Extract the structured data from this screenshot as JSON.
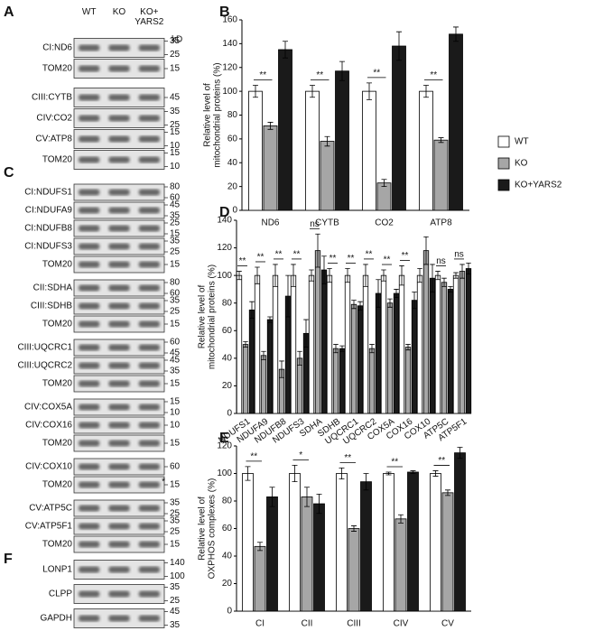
{
  "blots": [
    {
      "label": "A",
      "lanes": [
        "WT",
        "KO",
        "KO+ YARS2"
      ],
      "unit": "kD",
      "groups": [
        [
          {
            "name": "CI:ND6",
            "markers": [
              "35",
              "25"
            ]
          },
          {
            "name": "TOM20",
            "markers": [
              "15"
            ]
          }
        ],
        [
          {
            "name": "CIII:CYTB",
            "markers": [
              "45"
            ]
          },
          {
            "name": "CIV:CO2",
            "markers": [
              "35",
              "25"
            ]
          },
          {
            "name": "CV:ATP8",
            "markers": [
              "15",
              "10"
            ]
          },
          {
            "name": "TOM20",
            "markers": [
              "15",
              "10"
            ]
          }
        ]
      ]
    },
    {
      "label": "C",
      "groups": [
        [
          {
            "name": "CI:NDUFS1",
            "markers": [
              "80",
              "60"
            ]
          },
          {
            "name": "CI:NDUFA9",
            "markers": [
              "45",
              "35"
            ]
          },
          {
            "name": "CI:NDUFB8",
            "markers": [
              "25",
              "15"
            ]
          },
          {
            "name": "CI:NDUFS3",
            "markers": [
              "35",
              "25"
            ]
          },
          {
            "name": "TOM20",
            "markers": [
              "15"
            ]
          }
        ],
        [
          {
            "name": "CII:SDHA",
            "markers": [
              "80",
              "60"
            ]
          },
          {
            "name": "CIII:SDHB",
            "markers": [
              "35",
              "25"
            ]
          },
          {
            "name": "TOM20",
            "markers": [
              "15"
            ]
          }
        ],
        [
          {
            "name": "CIII:UQCRC1",
            "markers": [
              "60",
              "45"
            ]
          },
          {
            "name": "CIII:UQCRC2",
            "markers": [
              "45",
              "35"
            ]
          },
          {
            "name": "TOM20",
            "markers": [
              "15"
            ]
          }
        ],
        [
          {
            "name": "CIV:COX5A",
            "markers": [
              "15",
              "10"
            ]
          },
          {
            "name": "CIV:COX16",
            "markers": [
              "10"
            ]
          },
          {
            "name": "TOM20",
            "markers": [
              "15"
            ]
          }
        ],
        [
          {
            "name": "CIV:COX10",
            "markers": [
              "60"
            ]
          },
          {
            "name": "TOM20",
            "markers": [
              "15"
            ],
            "note": "*"
          }
        ],
        [
          {
            "name": "CV:ATP5C",
            "markers": [
              "35",
              "25"
            ]
          },
          {
            "name": "CV:ATP5F1",
            "markers": [
              "35",
              "25"
            ]
          },
          {
            "name": "TOM20",
            "markers": [
              "15"
            ]
          }
        ]
      ]
    },
    {
      "label": "F",
      "groups": [
        [
          {
            "name": "LONP1",
            "markers": [
              "140",
              "100"
            ]
          }
        ],
        [
          {
            "name": "CLPP",
            "markers": [
              "35",
              "25"
            ]
          }
        ],
        [
          {
            "name": "GAPDH",
            "markers": [
              "45",
              "35"
            ]
          }
        ]
      ]
    }
  ],
  "chart_data": [
    {
      "type": "bar",
      "panel_label": "B",
      "ylabel": [
        "Relative level of",
        "mitochondrial proteins (%)"
      ],
      "categories": [
        "ND6",
        "CYTB",
        "CO2",
        "ATP8"
      ],
      "series": [
        {
          "name": "WT",
          "color": "#ffffff",
          "values": [
            100,
            100,
            100,
            100
          ],
          "errors": [
            5,
            5,
            7,
            5
          ]
        },
        {
          "name": "KO",
          "color": "#a6a6a6",
          "values": [
            71,
            58,
            23,
            59
          ],
          "errors": [
            3,
            4,
            3,
            2
          ]
        },
        {
          "name": "KO+YARS2",
          "color": "#1a1a1a",
          "values": [
            135,
            117,
            138,
            148
          ],
          "errors": [
            7,
            8,
            12,
            6
          ]
        }
      ],
      "significance": [
        "**",
        "**",
        "**",
        "**"
      ],
      "ylim": [
        0,
        160
      ],
      "yticks": [
        0,
        20,
        40,
        60,
        80,
        100,
        120,
        140,
        160
      ],
      "legend": "right"
    },
    {
      "type": "bar",
      "panel_label": "D",
      "ylabel": [
        "Relative level of",
        "mitochondrial proteins (%)"
      ],
      "categories": [
        "NDUFS1",
        "NDUFA9",
        "NDUFB8",
        "NDUFS3",
        "SDHA",
        "SDHB",
        "UQCRC1",
        "UQCRC2",
        "COX5A",
        "COX16",
        "COX10",
        "ATP5C",
        "ATP5F1"
      ],
      "series": [
        {
          "name": "WT",
          "color": "#ffffff",
          "values": [
            100,
            100,
            100,
            100,
            100,
            100,
            100,
            100,
            100,
            100,
            100,
            100,
            100
          ],
          "errors": [
            3,
            6,
            8,
            8,
            4,
            5,
            5,
            8,
            4,
            7,
            5,
            3,
            2
          ]
        },
        {
          "name": "KO",
          "color": "#a6a6a6",
          "values": [
            50,
            42,
            32,
            40,
            118,
            47,
            79,
            47,
            80,
            48,
            118,
            95,
            103
          ],
          "errors": [
            2,
            3,
            6,
            5,
            12,
            3,
            3,
            3,
            3,
            2,
            10,
            3,
            5
          ]
        },
        {
          "name": "KO+YARS2",
          "color": "#1a1a1a",
          "values": [
            75,
            68,
            85,
            58,
            104,
            47,
            78,
            87,
            87,
            82,
            98,
            90,
            105
          ],
          "errors": [
            6,
            2,
            15,
            10,
            10,
            2,
            3,
            10,
            3,
            6,
            10,
            2,
            4
          ]
        }
      ],
      "significance": [
        "**",
        "**",
        "**",
        "**",
        "ns",
        "**",
        "**",
        "**",
        "**",
        "**",
        null,
        "ns",
        "ns"
      ],
      "ylim": [
        0,
        140
      ],
      "yticks": [
        0,
        20,
        40,
        60,
        80,
        100,
        120,
        140
      ]
    },
    {
      "type": "bar",
      "panel_label": "E",
      "ylabel": [
        "Relative level of",
        "OXPHOS complexes (%)"
      ],
      "categories": [
        "CI",
        "CII",
        "CIII",
        "CIV",
        "CV"
      ],
      "series": [
        {
          "name": "WT",
          "color": "#ffffff",
          "values": [
            100,
            100,
            100,
            100,
            100
          ],
          "errors": [
            5,
            6,
            4,
            1,
            2
          ]
        },
        {
          "name": "KO",
          "color": "#a6a6a6",
          "values": [
            47,
            83,
            60,
            67,
            86
          ],
          "errors": [
            3,
            7,
            2,
            3,
            2
          ]
        },
        {
          "name": "KO+YARS2",
          "color": "#1a1a1a",
          "values": [
            83,
            78,
            94,
            101,
            115
          ],
          "errors": [
            7,
            7,
            6,
            1,
            4
          ]
        }
      ],
      "significance": [
        "**",
        "*",
        "**",
        "**",
        "**"
      ],
      "ylim": [
        0,
        120
      ],
      "yticks": [
        0,
        20,
        40,
        60,
        80,
        100,
        120
      ]
    }
  ]
}
